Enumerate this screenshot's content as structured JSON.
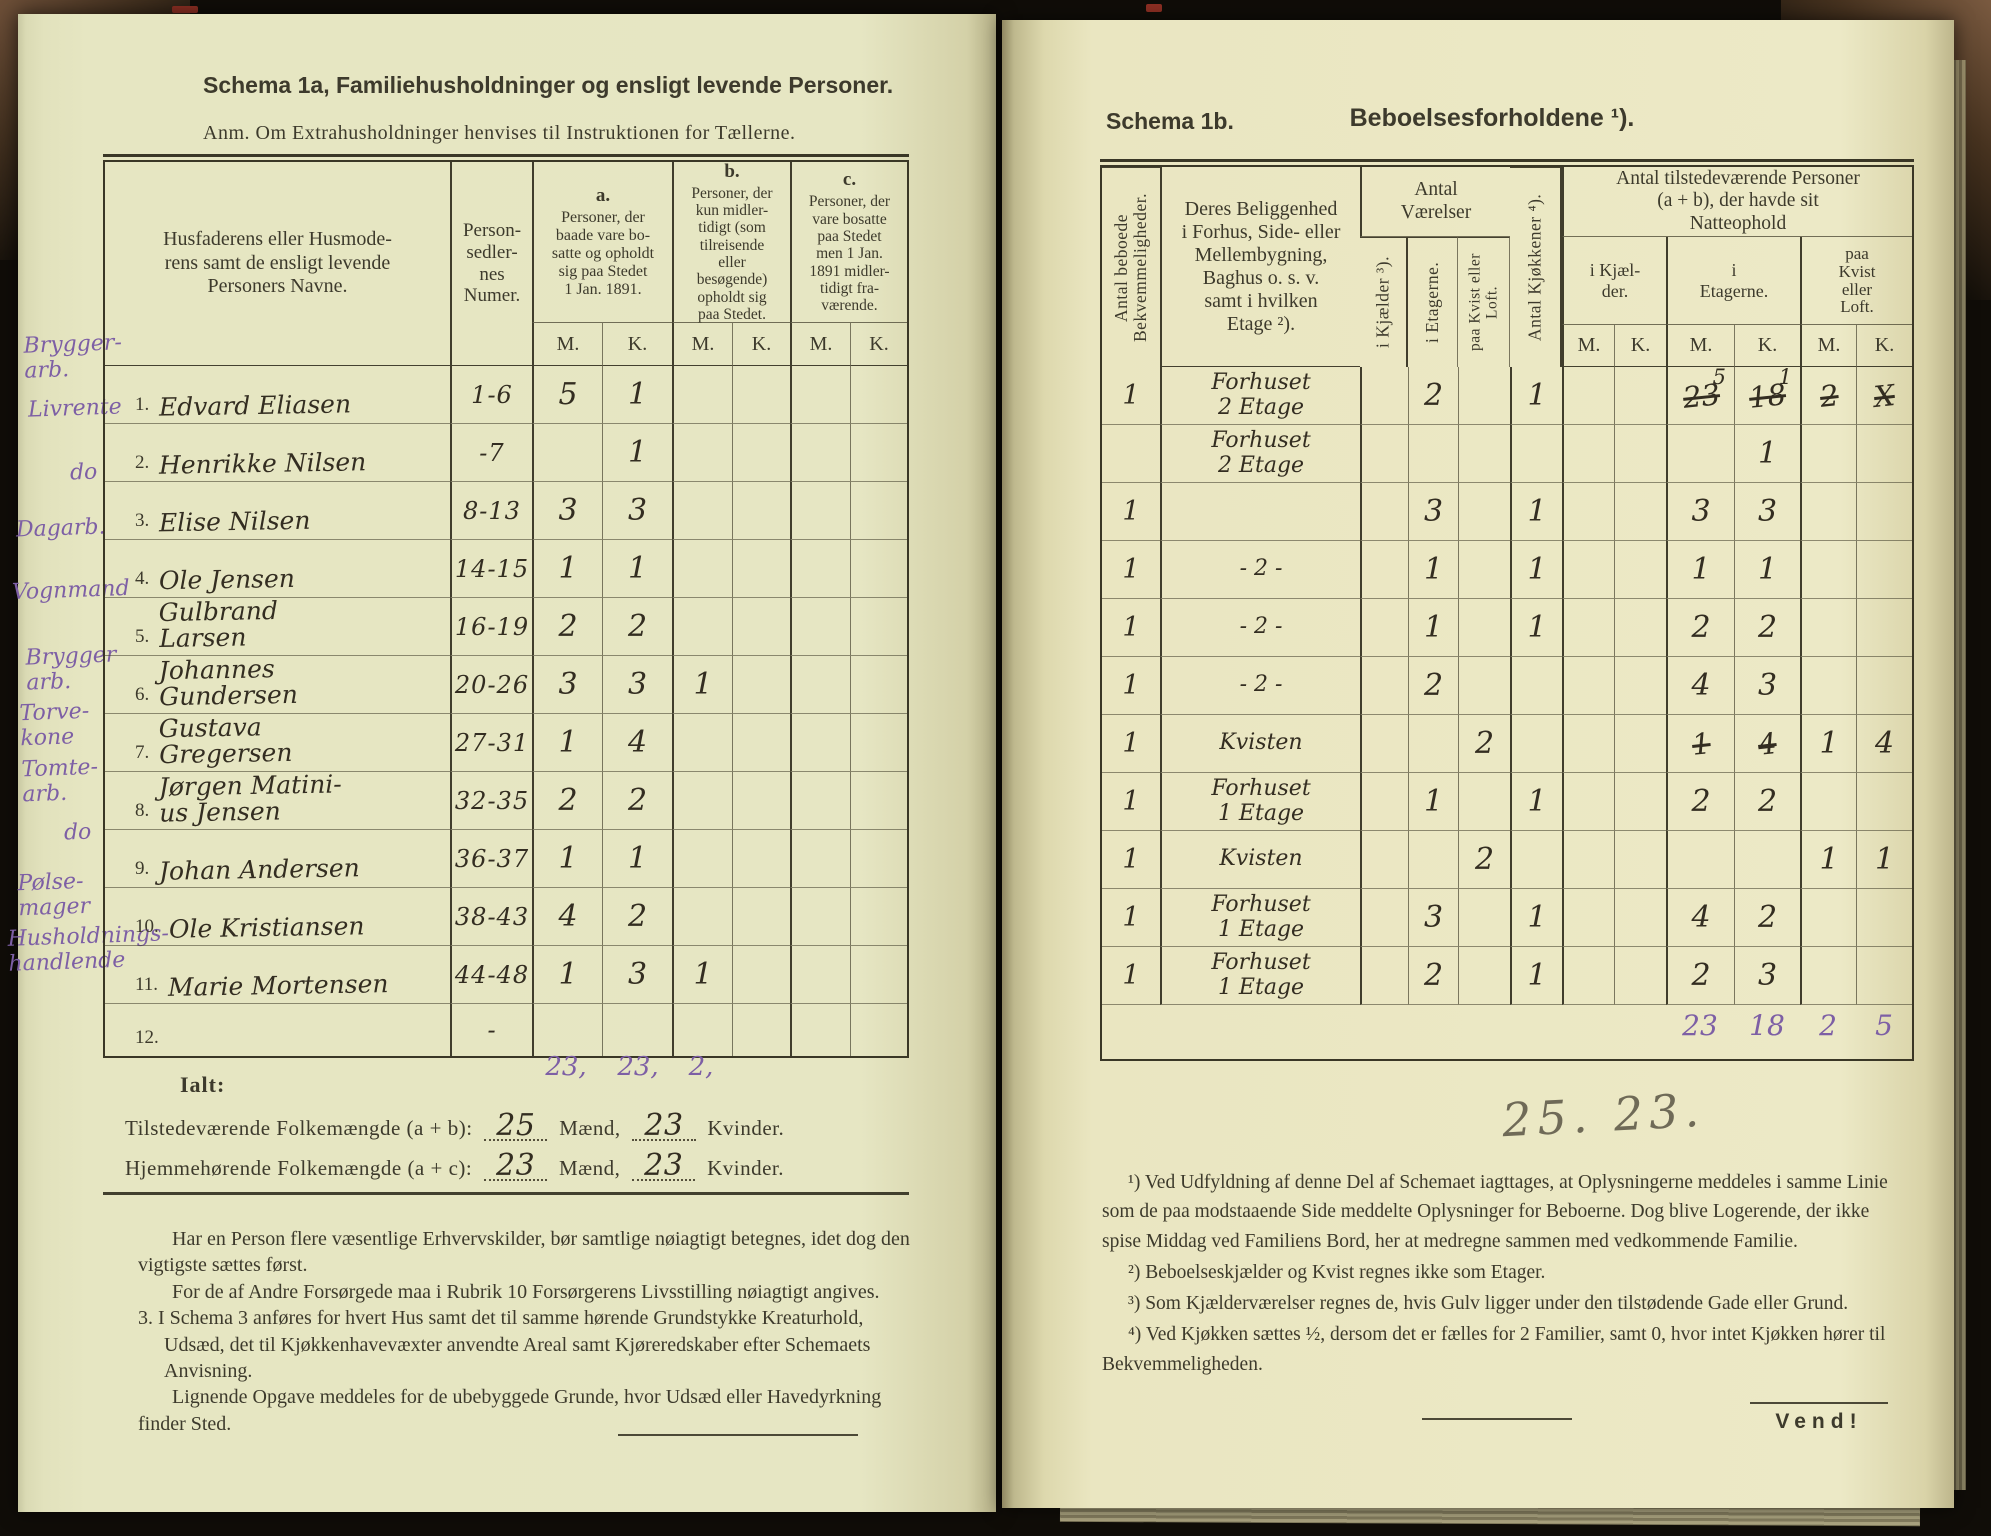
{
  "schema1a": {
    "title": "Schema 1a,  Familiehusholdninger og ensligt levende Personer.",
    "note": "Anm.  Om Extrahusholdninger henvises til Instruktionen for Tællerne.",
    "headers": {
      "names": "Husfaderens eller Husmode-\nrens samt de ensligt levende\nPersoners Navne.",
      "numer": "Person-\nsedler-\nnes\nNumer.",
      "a_label": "a.",
      "a_text": "Personer, der\nbaade vare bo-\nsatte og opholdt\nsig paa Stedet\n1 Jan. 1891.",
      "b_label": "b.",
      "b_text": "Personer, der\nkun midler-\ntidigt (som\ntilreisende\neller\nbesøgende)\nopholdt sig\npaa Stedet.",
      "c_label": "c.",
      "c_text": "Personer, der\nvare bosatte\npaa Stedet\nmen 1 Jan.\n1891 midler-\ntidigt fra-\nværende.",
      "m": "M.",
      "k": "K."
    },
    "rows": [
      {
        "no": "1.",
        "occupation": "Brygger-\narb.",
        "name": "Edvard Eliasen",
        "sedler": "1-6",
        "aM": "5",
        "aK": "1",
        "bM": "",
        "bK": "",
        "cM": "",
        "cK": ""
      },
      {
        "no": "2.",
        "occupation": "Livrente",
        "name": "Henrikke Nilsen",
        "sedler": "-7",
        "aM": "",
        "aK": "1",
        "bM": "",
        "bK": "",
        "cM": "",
        "cK": ""
      },
      {
        "no": "3.",
        "occupation": "do",
        "name": "Elise Nilsen",
        "sedler": "8-13",
        "aM": "3",
        "aK": "3",
        "bM": "",
        "bK": "",
        "cM": "",
        "cK": ""
      },
      {
        "no": "4.",
        "occupation": "Dagarb.",
        "name": "Ole Jensen",
        "sedler": "14-15",
        "aM": "1",
        "aK": "1",
        "bM": "",
        "bK": "",
        "cM": "",
        "cK": ""
      },
      {
        "no": "5.",
        "occupation": "Vognmand",
        "name": "Gulbrand\nLarsen",
        "sedler": "16-19",
        "aM": "2",
        "aK": "2",
        "bM": "",
        "bK": "",
        "cM": "",
        "cK": ""
      },
      {
        "no": "6.",
        "occupation": "Brygger\narb.",
        "name": "Johannes\nGundersen",
        "sedler": "20-26",
        "aM": "3",
        "aK": "3",
        "bM": "1",
        "bK": "",
        "cM": "",
        "cK": ""
      },
      {
        "no": "7.",
        "occupation": "Torve-\nkone",
        "name": "Gustava\nGregersen",
        "sedler": "27-31",
        "aM": "1",
        "aK": "4",
        "bM": "",
        "bK": "",
        "cM": "",
        "cK": ""
      },
      {
        "no": "8.",
        "occupation": "Tomte-\narb.",
        "name": "Jørgen Matini-\nus Jensen",
        "sedler": "32-35",
        "aM": "2",
        "aK": "2",
        "bM": "",
        "bK": "",
        "cM": "",
        "cK": ""
      },
      {
        "no": "9.",
        "occupation": "do",
        "name": "Johan Andersen",
        "sedler": "36-37",
        "aM": "1",
        "aK": "1",
        "bM": "",
        "bK": "",
        "cM": "",
        "cK": ""
      },
      {
        "no": "10.",
        "occupation": "Pølse-\nmager",
        "name": "Ole Kristiansen",
        "sedler": "38-43",
        "aM": "4",
        "aK": "2",
        "bM": "",
        "bK": "",
        "cM": "",
        "cK": ""
      },
      {
        "no": "11.",
        "occupation": "Husholdnings-\nhandlende",
        "name": "Marie Mortensen",
        "sedler": "44-48",
        "aM": "1",
        "aK": "3",
        "bM": "1",
        "bK": "",
        "cM": "",
        "cK": ""
      },
      {
        "no": "12.",
        "occupation": "",
        "name": "",
        "sedler": "-",
        "aM": "",
        "aK": "",
        "bM": "",
        "bK": "",
        "cM": "",
        "cK": ""
      }
    ],
    "totals": {
      "aM": "23,",
      "aK": "23,",
      "bM": "2,"
    },
    "ialt": {
      "label": "Ialt:",
      "line1_text": "Tilstedeværende Folkemængde (a + b):",
      "line1_maend": "25",
      "line1_maend_label": "Mænd,",
      "line1_kvinder": "23",
      "line1_kvinder_label": "Kvinder.",
      "line2_text": "Hjemmehørende Folkemængde (a + c):",
      "line2_maend": "23",
      "line2_maend_label": "Mænd,",
      "line2_kvinder": "23",
      "line2_kvinder_label": "Kvinder."
    },
    "footer": [
      "Har en Person flere væsentlige Erhvervskilder, bør samtlige nøiagtigt betegnes, idet dog den vigtigste sættes først.",
      "For de af Andre Forsørgede maa i Rubrik 10 Forsørgerens Livsstilling nøiagtigt angives.",
      "3.  I Schema 3 anføres for hvert Hus samt det til samme hørende Grundstykke Kreaturhold, Udsæd, det til Kjøkkenhavevæxter anvendte Areal samt Kjøreredskaber efter Schemaets Anvisning.",
      "Lignende Opgave meddeles for de ubebyggede Grunde, hvor Udsæd eller Havedyrkning finder Sted."
    ]
  },
  "schema1b": {
    "title": "Schema 1b.",
    "heading": "Beboelsesforholdene ¹).",
    "headers": {
      "col1": "Antal beboede\nBekvemmeligheder.",
      "col2": "Deres Beliggenhed\ni Forhus, Side- eller\nMellembygning,\nBaghus o. s. v.\nsamt i hvilken\nEtage ²).",
      "vaerelser": "Antal\nVærelser",
      "kjaelder_v": "i Kjælder ³).",
      "etagerne_v": "i Etagerne.",
      "kvist_v": "paa Kvist eller\nLoft.",
      "kjokkener_v": "Antal Kjøkkener ⁴).",
      "personer": "Antal tilstedeværende Personer\n(a + b), der havde sit\nNatteophold",
      "i_kjaelder": "i Kjæl-\nder.",
      "i_etagerne": "i\nEtagerne.",
      "paa_kvist": "paa\nKvist\neller\nLoft.",
      "m": "M.",
      "k": "K."
    },
    "rows": [
      {
        "antal": "1",
        "beliggenhed": "Forhuset\n2 Etage",
        "kjV": "",
        "etV": "2",
        "kvV": "",
        "kjok": "1",
        "kjM": "",
        "kjK": "",
        "etM": {
          "cross": "23",
          "corr": "5"
        },
        "etK": {
          "cross": "18",
          "corr": "1"
        },
        "kvM": {
          "cross": "2"
        },
        "kvK": {
          "cross": "X"
        }
      },
      {
        "antal": "",
        "beliggenhed": "Forhuset\n2 Etage",
        "kjV": "",
        "etV": "",
        "kvV": "",
        "kjok": "",
        "kjM": "",
        "kjK": "",
        "etM": "",
        "etK": "1",
        "kvM": "",
        "kvK": ""
      },
      {
        "antal": "1",
        "beliggenhed": "",
        "kjV": "",
        "etV": "3",
        "kvV": "",
        "kjok": "1",
        "kjM": "",
        "kjK": "",
        "etM": "3",
        "etK": "3",
        "kvM": "",
        "kvK": ""
      },
      {
        "antal": "1",
        "beliggenhed": "- 2 -",
        "kjV": "",
        "etV": "1",
        "kvV": "",
        "kjok": "1",
        "kjM": "",
        "kjK": "",
        "etM": "1",
        "etK": "1",
        "kvM": "",
        "kvK": ""
      },
      {
        "antal": "1",
        "beliggenhed": "- 2 -",
        "kjV": "",
        "etV": "1",
        "kvV": "",
        "kjok": "1",
        "kjM": "",
        "kjK": "",
        "etM": "2",
        "etK": "2",
        "kvM": "",
        "kvK": ""
      },
      {
        "antal": "1",
        "beliggenhed": "- 2 -",
        "kjV": "",
        "etV": "2",
        "kvV": "",
        "kjok": "",
        "kjM": "",
        "kjK": "",
        "etM": "4",
        "etK": "3",
        "kvM": "",
        "kvK": ""
      },
      {
        "antal": "1",
        "beliggenhed": "Kvisten",
        "kjV": "",
        "etV": "",
        "kvV": "2",
        "kjok": "",
        "kjM": "",
        "kjK": "",
        "etM": {
          "cross": "1"
        },
        "etK": {
          "cross": "4"
        },
        "kvM": "1",
        "kvK": "4"
      },
      {
        "antal": "1",
        "beliggenhed": "Forhuset\n1 Etage",
        "kjV": "",
        "etV": "1",
        "kvV": "",
        "kjok": "1",
        "kjM": "",
        "kjK": "",
        "etM": "2",
        "etK": "2",
        "kvM": "",
        "kvK": ""
      },
      {
        "antal": "1",
        "beliggenhed": "Kvisten",
        "kjV": "",
        "etV": "",
        "kvV": "2",
        "kjok": "",
        "kjM": "",
        "kjK": "",
        "etM": "",
        "etK": "",
        "kvM": "1",
        "kvK": "1"
      },
      {
        "antal": "1",
        "beliggenhed": "Forhuset\n1 Etage",
        "kjV": "",
        "etV": "3",
        "kvV": "",
        "kjok": "1",
        "kjM": "",
        "kjK": "",
        "etM": "4",
        "etK": "2",
        "kvM": "",
        "kvK": ""
      },
      {
        "antal": "1",
        "beliggenhed": "Forhuset\n1 Etage",
        "kjV": "",
        "etV": "2",
        "kvV": "",
        "kjok": "1",
        "kjM": "",
        "kjK": "",
        "etM": "2",
        "etK": "3",
        "kvM": "",
        "kvK": ""
      }
    ],
    "totals": {
      "etM": "23",
      "etK": "18",
      "kvM": "2",
      "kvK": "5"
    },
    "pencil_note": "25. 23.",
    "footnotes": [
      "¹) Ved Udfyldning af denne Del af Schemaet iagttages, at Oplysningerne meddeles i samme Linie som de paa modstaaende Side meddelte Oplysninger for Beboerne. Dog blive Logerende, der ikke spise Middag ved Familiens Bord, her at medregne sammen med vedkommende Familie.",
      "²) Beboelseskjælder og Kvist regnes ikke som Etager.",
      "³) Som Kjælderværelser regnes de, hvis Gulv ligger under den tilstødende Gade eller Grund.",
      "⁴) Ved Kjøkken sættes ½, dersom det er fælles for 2 Familier, samt 0, hvor intet Kjøkken hører til Bekvemmeligheden."
    ],
    "vend": "Vend!"
  }
}
